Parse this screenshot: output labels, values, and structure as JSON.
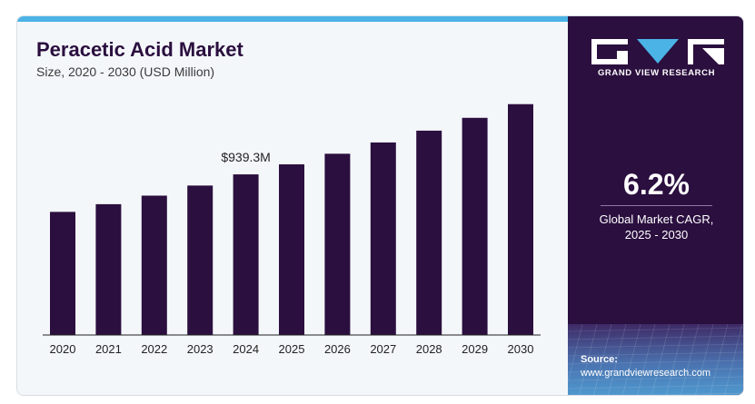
{
  "header": {
    "title": "Peracetic Acid Market",
    "subtitle": "Size, 2020 - 2030 (USD Million)"
  },
  "chart_data": {
    "type": "bar",
    "title": "Peracetic Acid Market",
    "subtitle": "Size, 2020 - 2030 (USD Million)",
    "categories": [
      "2020",
      "2021",
      "2022",
      "2023",
      "2024",
      "2025",
      "2026",
      "2027",
      "2028",
      "2029",
      "2030"
    ],
    "values": [
      720,
      765,
      815,
      874,
      939.3,
      998,
      1060,
      1126,
      1195,
      1270,
      1350
    ],
    "ylim": [
      0,
      1460
    ],
    "grid": false,
    "annotations": [
      {
        "category": "2024",
        "text": "$939.3M"
      }
    ],
    "colors": {
      "bar": "#2b0f3f",
      "axis": "#222222"
    }
  },
  "sidebar": {
    "brand": "GRAND VIEW RESEARCH",
    "cagr_value": "6.2%",
    "cagr_label_line1": "Global Market CAGR,",
    "cagr_label_line2": "2025 - 2030",
    "source_title": "Source:",
    "source_url": "www.grandviewresearch.com",
    "colors": {
      "panel": "#2b0f3f",
      "accent": "#4bb3e6"
    }
  }
}
